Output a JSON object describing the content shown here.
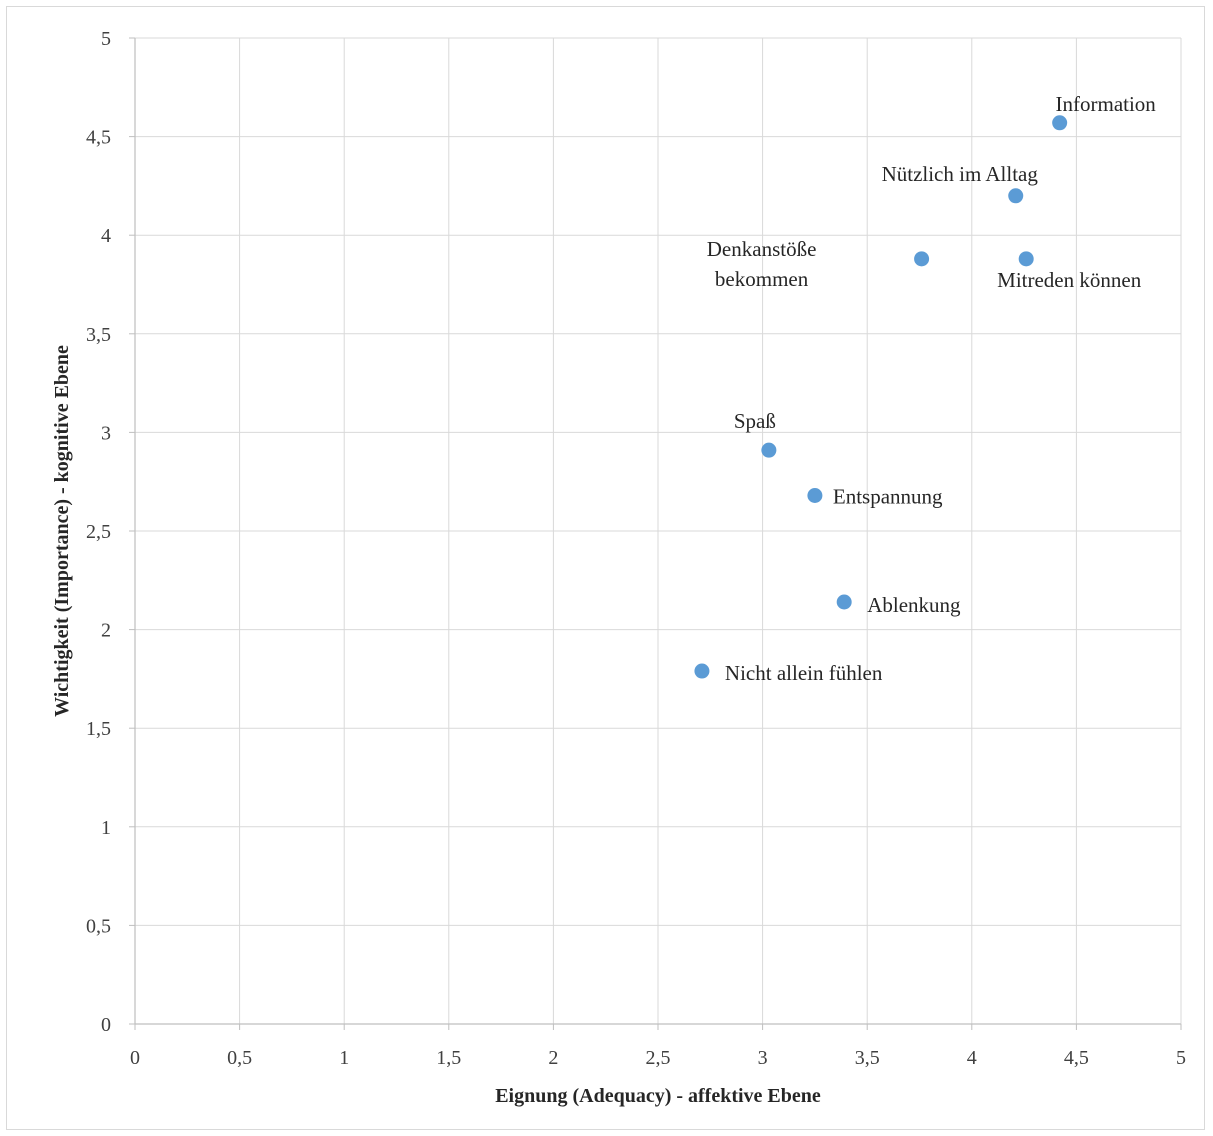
{
  "chart_data": {
    "type": "scatter",
    "title": "",
    "xlabel": "Eignung (Adequacy) - affektive Ebene",
    "ylabel": "Wichtigkeit (Importance) - kognitive Ebene",
    "xlim": [
      0,
      5
    ],
    "ylim": [
      0,
      5
    ],
    "x_ticks": [
      "0",
      "0,5",
      "1",
      "1,5",
      "2",
      "2,5",
      "3",
      "3,5",
      "4",
      "4,5",
      "5"
    ],
    "y_ticks": [
      "0",
      "0,5",
      "1",
      "1,5",
      "2",
      "2,5",
      "3",
      "3,5",
      "4",
      "4,5",
      "5"
    ],
    "grid": true,
    "legend": "none",
    "marker_color": "#5b9bd5",
    "points": [
      {
        "label": "Information",
        "x": 4.42,
        "y": 4.57
      },
      {
        "label": "Nützlich im Alltag",
        "x": 4.21,
        "y": 4.2
      },
      {
        "label": "Mitreden können",
        "x": 4.26,
        "y": 3.88
      },
      {
        "label": "Denkanstöße bekommen",
        "label_lines": [
          "Denkanstöße",
          "bekommen"
        ],
        "x": 3.76,
        "y": 3.88
      },
      {
        "label": "Spaß",
        "x": 3.03,
        "y": 2.91
      },
      {
        "label": "Entspannung",
        "x": 3.25,
        "y": 2.68
      },
      {
        "label": "Ablenkung",
        "x": 3.39,
        "y": 2.14
      },
      {
        "label": "Nicht allein fühlen",
        "x": 2.71,
        "y": 1.79
      }
    ]
  }
}
